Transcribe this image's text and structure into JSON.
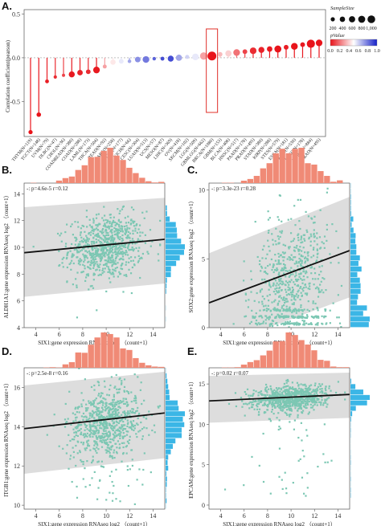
{
  "panel_labels": [
    "A.",
    "B.",
    "C.",
    "D.",
    "E."
  ],
  "colors": {
    "scatter": "#7cc7b3",
    "hist_x": "#f08a76",
    "hist_y": "#3bb6e6",
    "band": "#cfcfcf",
    "regression": "#111111",
    "highlight_box": "#e0302a",
    "pvalue_low": "#e8141b",
    "pvalue_mid": "#ffffff",
    "pvalue_high": "#1520c8"
  },
  "chart_data": [
    {
      "panel": "A",
      "type": "lollipop",
      "ylabel": "Correlation coefficient(pearson)",
      "ylim": [
        -0.9,
        0.55
      ],
      "yticks": [
        0.5,
        0.0,
        -0.5
      ],
      "ytick_labels": [
        "0.5",
        "0.0",
        "-0.5"
      ],
      "categories": [
        "THYM(N=119)",
        "TGCT(N=148)",
        "UVM(N=79)",
        "DLBC(N=47)",
        "CHOL(N=36)",
        "COADREAD(N=380)",
        "COAD(N=288)",
        "LAML(N=173)",
        "THCA(N=504)",
        "READ(N=92)",
        "SARC(N=258)",
        "PCPG(N=177)",
        "KICH(N=66)",
        "CESC(N=304)",
        "LUAD(N=513)",
        "UCS(N=57)",
        "MESO(N=87)",
        "LIHC(N=369)",
        "OV(N=418)",
        "SKCM(N=102)",
        "LGG(N=509)",
        "GBMLGG(N=662)",
        "BRCA(N=1080)",
        "GBM(N=153)",
        "BLCA(N=408)",
        "HNSC(N=517)",
        "PAAD(N=178)",
        "PRAD(N=495)",
        "STAD(N=380)",
        "KIRP(N=288)",
        "STES(N=579)",
        "ESCA(N=181)",
        "KIRC(N=530)",
        "UCEC(N=178)",
        "KIPAN(N=884)",
        "PRAD(N=495)"
      ],
      "values": [
        -0.85,
        -0.65,
        -0.27,
        -0.22,
        -0.2,
        -0.19,
        -0.17,
        -0.16,
        -0.14,
        -0.1,
        -0.05,
        -0.04,
        -0.04,
        -0.02,
        -0.02,
        -0.01,
        -0.01,
        -0.01,
        0.0,
        0.01,
        0.01,
        0.02,
        0.02,
        0.04,
        0.05,
        0.06,
        0.07,
        0.08,
        0.09,
        0.1,
        0.1,
        0.12,
        0.13,
        0.15,
        0.16,
        0.17
      ],
      "pvalue": [
        0.0,
        0.0,
        0.02,
        0.05,
        0.1,
        0.01,
        0.03,
        0.05,
        0.01,
        0.3,
        0.45,
        0.55,
        0.7,
        0.75,
        0.8,
        0.85,
        0.9,
        0.9,
        0.7,
        0.6,
        0.55,
        0.3,
        0.0,
        0.35,
        0.4,
        0.2,
        0.1,
        0.05,
        0.03,
        0.01,
        0.0,
        0.02,
        0.0,
        0.01,
        0.0,
        0.0
      ],
      "sample_size": [
        119,
        148,
        79,
        47,
        36,
        380,
        288,
        173,
        504,
        92,
        258,
        177,
        66,
        304,
        513,
        57,
        87,
        369,
        418,
        102,
        509,
        662,
        1080,
        153,
        408,
        517,
        178,
        495,
        380,
        288,
        579,
        181,
        530,
        178,
        884,
        495
      ],
      "highlight_category": "BRCA(N=1080)",
      "legend": {
        "size_title": "SampleSize",
        "size_values": [
          200,
          400,
          600,
          800,
          1000
        ],
        "size_labels": [
          "200",
          "400",
          "600",
          "800",
          "1,000"
        ],
        "color_title": "pValue",
        "color_ticks": [
          "0.0",
          "0.2",
          "0.4",
          "0.6",
          "0.8",
          "1.0"
        ]
      }
    },
    {
      "panel": "B",
      "type": "scatter",
      "stat_text": "-: p=4.6e-5 r=0.12",
      "xlabel": "SIX1:gene expression RNAseq log2 （count+1）",
      "ylabel": "ALDH1A1:gene expression RNAseq log2 （count+1）",
      "xlim": [
        3,
        15
      ],
      "ylim": [
        4,
        14.8
      ],
      "xticks": [
        4,
        6,
        8,
        10,
        12,
        14
      ],
      "yticks": [
        4,
        6,
        8,
        10,
        12,
        14
      ],
      "regression": {
        "x": [
          3,
          15
        ],
        "y": [
          9.6,
          10.6
        ]
      },
      "band_upper": [
        13.0,
        13.7
      ],
      "band_lower": [
        6.3,
        7.3
      ],
      "cloud": {
        "n": 800,
        "x_center": 10,
        "x_sd": 1.6,
        "y_center": 10.0,
        "y_sd": 1.2
      }
    },
    {
      "panel": "C",
      "type": "scatter",
      "stat_text": "-: p=3.3e-23 r=0.28",
      "xlabel": "SIX1:gene expression RNAseq log2 （count+1）",
      "ylabel": "SOX2:gene expression RNAseq log2 （count+1）",
      "xlim": [
        3,
        15
      ],
      "ylim": [
        0,
        10.5
      ],
      "xticks": [
        4,
        6,
        8,
        10,
        12,
        14
      ],
      "yticks": [
        0,
        5,
        10
      ],
      "regression": {
        "x": [
          3,
          15
        ],
        "y": [
          1.8,
          5.6
        ]
      },
      "band_upper": [
        5.4,
        9.5
      ],
      "band_lower": [
        -1.6,
        2.2
      ],
      "cloud": {
        "n": 800,
        "x_center": 10,
        "x_sd": 1.7,
        "y_center": 3.6,
        "y_sd": 2.2
      }
    },
    {
      "panel": "D",
      "type": "scatter",
      "stat_text": "-: p=2.5e-8 r=0.16",
      "xlabel": "SIX1:gene expression RNAseq log2 （count+1）",
      "ylabel": "ITGB1:gene expression RNAseq log2 （count+1）",
      "xlim": [
        3,
        15
      ],
      "ylim": [
        9.8,
        17
      ],
      "xticks": [
        4,
        6,
        8,
        10,
        12,
        14
      ],
      "yticks": [
        10,
        12,
        14,
        16
      ],
      "regression": {
        "x": [
          3,
          15
        ],
        "y": [
          13.9,
          14.7
        ]
      },
      "band_upper": [
        16.1,
        16.8
      ],
      "band_lower": [
        11.6,
        12.4
      ],
      "cloud": {
        "n": 800,
        "x_center": 10,
        "x_sd": 1.6,
        "y_center": 14.2,
        "y_sd": 0.9
      }
    },
    {
      "panel": "E",
      "type": "scatter",
      "stat_text": "-: p=0.02 r=0.07",
      "xlabel": "SIX1:gene expression RNAseq log2 （count+1）",
      "ylabel": "EPCAM:gene expression RNAseq log2 （count+1）",
      "xlim": [
        3,
        15
      ],
      "ylim": [
        -0.5,
        17
      ],
      "xticks": [
        4,
        6,
        8,
        10,
        12,
        14
      ],
      "yticks": [
        0,
        5,
        10,
        15
      ],
      "regression": {
        "x": [
          3,
          15
        ],
        "y": [
          12.9,
          13.7
        ]
      },
      "band_upper": [
        16.0,
        16.4
      ],
      "band_lower": [
        10.2,
        10.8
      ],
      "cloud": {
        "n": 800,
        "x_center": 10,
        "x_sd": 1.6,
        "y_center": 13.2,
        "y_sd": 0.8
      }
    }
  ]
}
